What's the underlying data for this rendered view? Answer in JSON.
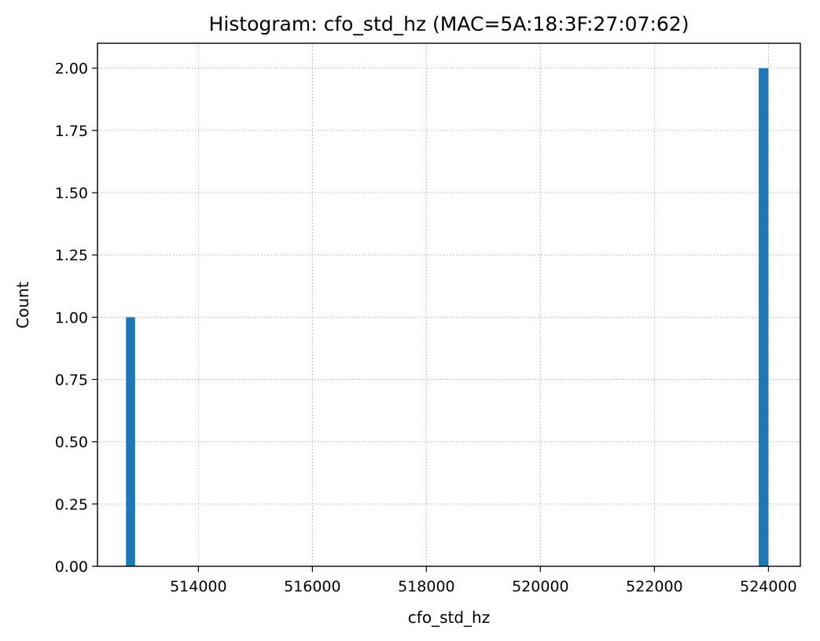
{
  "chart_data": {
    "type": "histogram",
    "title": "Histogram: cfo_std_hz (MAC=5A:18:3F:27:07:62)",
    "xlabel": "cfo_std_hz",
    "ylabel": "Count",
    "xlim": [
      512230,
      524560
    ],
    "ylim": [
      0,
      2.1
    ],
    "x_ticks": [
      514000,
      516000,
      518000,
      520000,
      522000,
      524000
    ],
    "x_tick_labels": [
      "514000",
      "516000",
      "518000",
      "520000",
      "522000",
      "524000"
    ],
    "y_ticks": [
      0,
      0.25,
      0.5,
      0.75,
      1.0,
      1.25,
      1.5,
      1.75,
      2.0
    ],
    "y_tick_labels": [
      "0.00",
      "0.25",
      "0.50",
      "0.75",
      "1.00",
      "1.25",
      "1.50",
      "1.75",
      "2.00"
    ],
    "grid": true,
    "bars": [
      {
        "x_start": 512730,
        "x_end": 512890,
        "count": 1
      },
      {
        "x_start": 523830,
        "x_end": 524000,
        "count": 2
      }
    ],
    "bar_color": "#1f77b4"
  }
}
